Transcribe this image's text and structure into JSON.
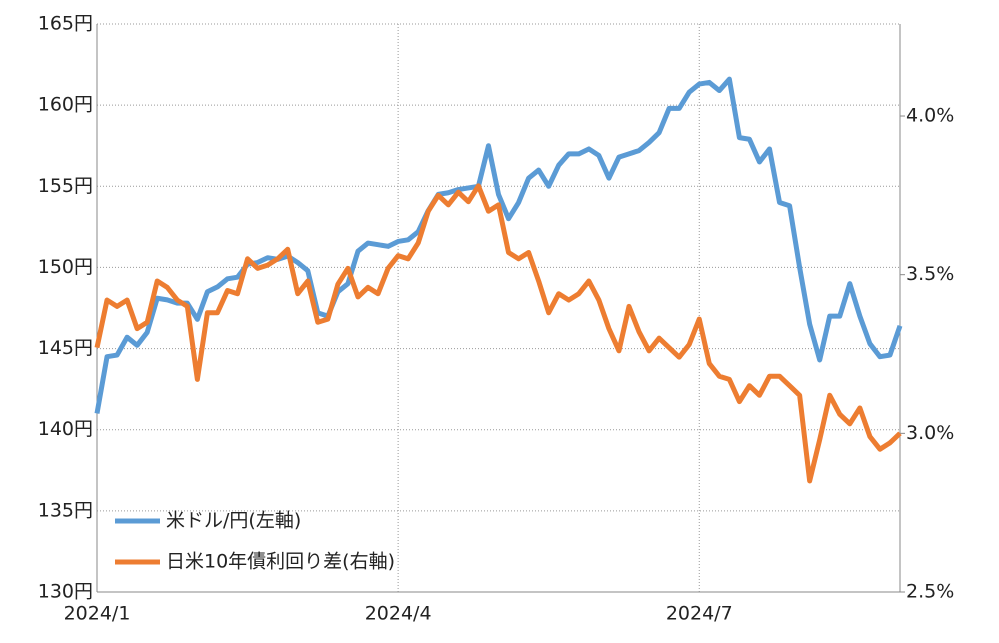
{
  "chart_data": {
    "type": "line",
    "categories": [
      "2024/1",
      null,
      null,
      null,
      null,
      null,
      null,
      null,
      null,
      null,
      null,
      null,
      null,
      null,
      null,
      null,
      null,
      null,
      null,
      null,
      null,
      null,
      null,
      null,
      null,
      null,
      null,
      null,
      null,
      null,
      "2024/4",
      null,
      null,
      null,
      null,
      null,
      null,
      null,
      null,
      null,
      null,
      null,
      null,
      null,
      null,
      null,
      null,
      null,
      null,
      null,
      null,
      null,
      null,
      null,
      null,
      null,
      null,
      null,
      null,
      null,
      "2024/7",
      null,
      null,
      null,
      null,
      null,
      null,
      null,
      null,
      null,
      null,
      null,
      null,
      null,
      null,
      null,
      null,
      null,
      null,
      null,
      null
    ],
    "series": [
      {
        "name": "米ドル/円(左軸)",
        "color": "#5b9bd5",
        "axis": "y",
        "values": [
          141.0,
          144.5,
          144.6,
          145.7,
          145.2,
          146.0,
          148.1,
          148.0,
          147.8,
          147.8,
          146.8,
          148.5,
          148.8,
          149.3,
          149.4,
          150.2,
          150.3,
          150.6,
          150.5,
          150.7,
          150.3,
          149.8,
          147.2,
          147.0,
          148.5,
          149.0,
          151.0,
          151.5,
          151.4,
          151.3,
          151.6,
          151.7,
          152.2,
          153.5,
          154.5,
          154.6,
          154.8,
          154.9,
          155.0,
          157.5,
          154.5,
          153.0,
          154.0,
          155.5,
          156.0,
          155.0,
          156.3,
          157.0,
          157.0,
          157.3,
          156.9,
          155.5,
          156.8,
          157.0,
          157.2,
          157.7,
          158.3,
          159.8,
          159.8,
          160.8,
          161.3,
          161.4,
          160.9,
          161.6,
          158.0,
          157.9,
          156.5,
          157.3,
          154.0,
          153.8,
          150.0,
          146.5,
          144.3,
          147.0,
          147.0,
          149.0,
          147.0,
          145.3,
          144.5,
          144.6,
          146.4
        ]
      },
      {
        "name": "日米10年債利回り差(右軸)",
        "color": "#ed7d31",
        "axis": "y2",
        "values": [
          3.27,
          3.42,
          3.4,
          3.42,
          3.33,
          3.35,
          3.48,
          3.46,
          3.42,
          3.4,
          3.17,
          3.38,
          3.38,
          3.45,
          3.44,
          3.55,
          3.52,
          3.53,
          3.55,
          3.58,
          3.44,
          3.48,
          3.35,
          3.36,
          3.47,
          3.52,
          3.43,
          3.46,
          3.44,
          3.52,
          3.56,
          3.55,
          3.6,
          3.7,
          3.75,
          3.72,
          3.76,
          3.73,
          3.78,
          3.7,
          3.72,
          3.57,
          3.55,
          3.57,
          3.48,
          3.38,
          3.44,
          3.42,
          3.44,
          3.48,
          3.42,
          3.33,
          3.26,
          3.4,
          3.32,
          3.26,
          3.3,
          3.27,
          3.24,
          3.28,
          3.36,
          3.22,
          3.18,
          3.17,
          3.1,
          3.15,
          3.12,
          3.18,
          3.18,
          3.15,
          3.12,
          2.85,
          2.98,
          3.12,
          3.06,
          3.03,
          3.08,
          2.99,
          2.95,
          2.97,
          3.0
        ]
      }
    ],
    "ylim": [
      130,
      165
    ],
    "yticks": [
      {
        "value": 130,
        "label": "130円"
      },
      {
        "value": 135,
        "label": "135円"
      },
      {
        "value": 140,
        "label": "140円"
      },
      {
        "value": 145,
        "label": "145円"
      },
      {
        "value": 150,
        "label": "150円"
      },
      {
        "value": 155,
        "label": "155円"
      },
      {
        "value": 160,
        "label": "160円"
      },
      {
        "value": 165,
        "label": "165円"
      }
    ],
    "y2lim": [
      2.5,
      4.29
    ],
    "y2ticks": [
      {
        "value": 2.5,
        "label": "2.5%"
      },
      {
        "value": 3.0,
        "label": "3.0%"
      },
      {
        "value": 3.5,
        "label": "3.5%"
      },
      {
        "value": 4.0,
        "label": "4.0%"
      }
    ],
    "grid": true,
    "legend": "lower left"
  }
}
